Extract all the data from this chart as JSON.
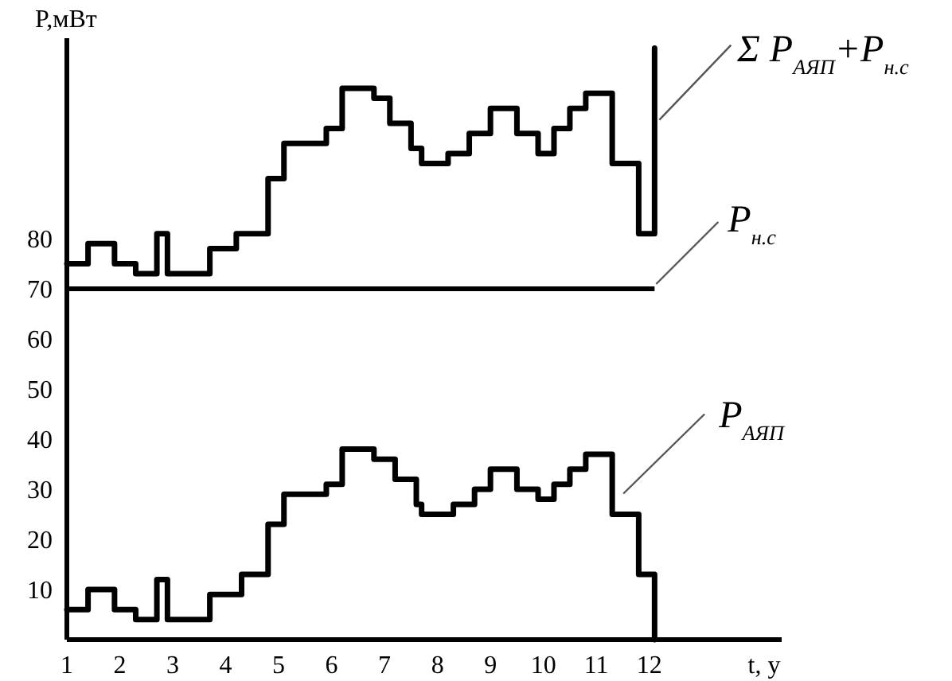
{
  "chart_data": {
    "type": "step",
    "xlabel": "t, у",
    "ylabel": "P,мВт",
    "xlim": [
      1,
      14.5
    ],
    "xticks": [
      1,
      2,
      3,
      4,
      5,
      6,
      7,
      8,
      9,
      10,
      11,
      12
    ],
    "ylim": [
      0,
      120
    ],
    "yticks": [
      10,
      20,
      30,
      40,
      50,
      60,
      70,
      80
    ],
    "series": [
      {
        "name": "P$_{АЯП}$",
        "color": "#000000",
        "x": [
          1,
          1.4,
          1.9,
          2.3,
          2.7,
          2.9,
          3.7,
          4.3,
          4.8,
          5.1,
          5.9,
          6.2,
          6.8,
          7.2,
          7.6,
          7.7,
          8.3,
          8.7,
          9.0,
          9.5,
          9.9,
          10.2,
          10.5,
          10.8,
          11.3,
          11.8,
          12.1
        ],
        "values": [
          6,
          10,
          6,
          4,
          12,
          4,
          9,
          13,
          23,
          29,
          31,
          38,
          36,
          32,
          27,
          25,
          27,
          30,
          34,
          30,
          28,
          31,
          34,
          37,
          25,
          13,
          0
        ]
      },
      {
        "name": "Σ P$_{АЯП}$+P$_{н.с}$",
        "color": "#000000",
        "x": [
          1,
          1.4,
          1.9,
          2.3,
          2.7,
          2.9,
          3.7,
          4.2,
          4.8,
          5.1,
          5.9,
          6.2,
          6.8,
          7.1,
          7.5,
          7.7,
          8.2,
          8.6,
          9.0,
          9.5,
          9.9,
          10.2,
          10.5,
          10.8,
          11.3,
          11.8,
          12.1
        ],
        "values": [
          75,
          79,
          75,
          73,
          81,
          73,
          78,
          81,
          92,
          99,
          102,
          110,
          108,
          103,
          98,
          95,
          97,
          101,
          106,
          101,
          97,
          102,
          106,
          109,
          95,
          81,
          118
        ]
      }
    ],
    "ref_lines": [
      {
        "axis": "y",
        "value": 70,
        "label": "P$_{н.с}$",
        "color": "#000000"
      }
    ]
  }
}
